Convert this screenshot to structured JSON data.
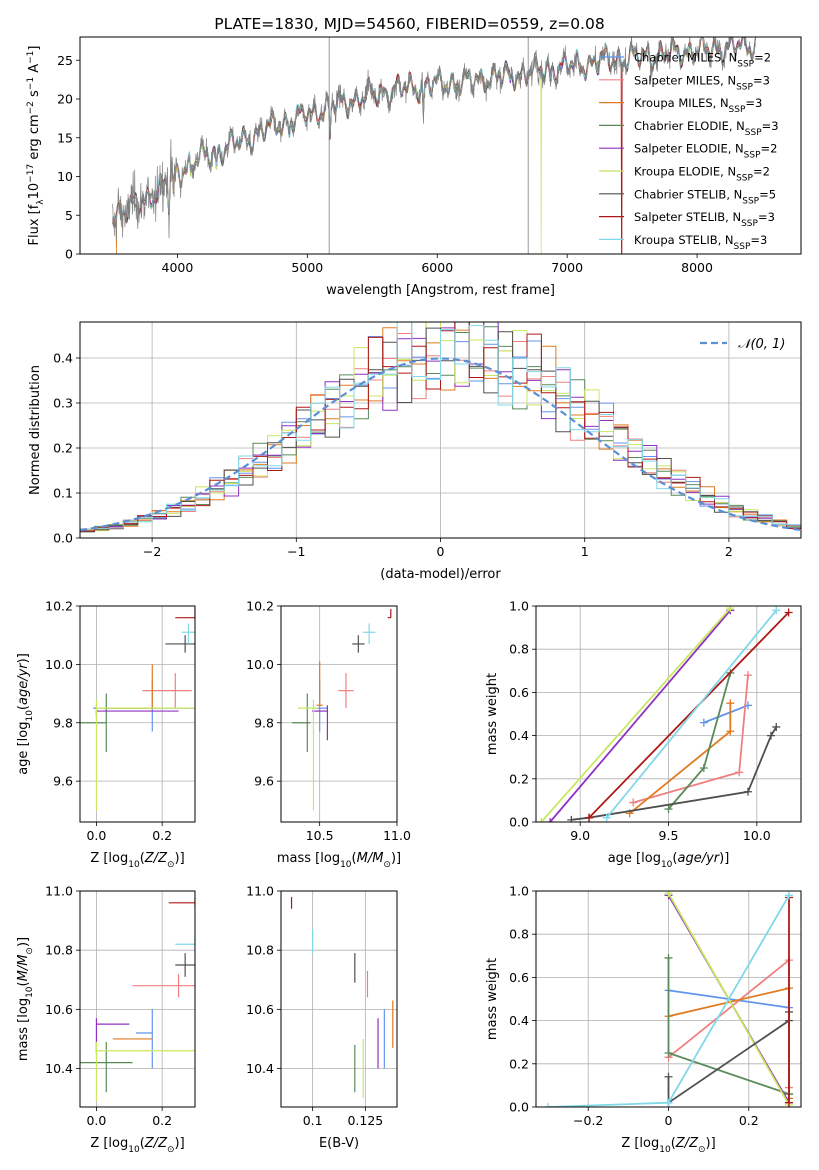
{
  "figure": {
    "suptitle": "PLATE=1830, MJD=54560, FIBERID=0559, z=0.08"
  },
  "series_styles": [
    {
      "name": "Chabrier MILES, N_SSP=2",
      "label_main": "Chabrier MILES, N",
      "label_sub": "SSP",
      "label_tail": "=2",
      "color": "#6495ed"
    },
    {
      "name": "Salpeter MILES, N_SSP=3",
      "label_main": "Salpeter MILES, N",
      "label_sub": "SSP",
      "label_tail": "=3",
      "color": "#f08080"
    },
    {
      "name": "Kroupa MILES, N_SSP=3",
      "label_main": "Kroupa MILES, N",
      "label_sub": "SSP",
      "label_tail": "=3",
      "color": "#e07b20"
    },
    {
      "name": "Chabrier ELODIE, N_SSP=3",
      "label_main": "Chabrier ELODIE, N",
      "label_sub": "SSP",
      "label_tail": "=3",
      "color": "#5a8a5a"
    },
    {
      "name": "Salpeter ELODIE, N_SSP=2",
      "label_main": "Salpeter ELODIE, N",
      "label_sub": "SSP",
      "label_tail": "=2",
      "color": "#9030c0"
    },
    {
      "name": "Kroupa ELODIE, N_SSP=2",
      "label_main": "Kroupa ELODIE, N",
      "label_sub": "SSP",
      "label_tail": "=2",
      "color": "#c8e860"
    },
    {
      "name": "Chabrier STELIB, N_SSP=5",
      "label_main": "Chabrier STELIB, N",
      "label_sub": "SSP",
      "label_tail": "=5",
      "color": "#505050"
    },
    {
      "name": "Salpeter STELIB, N_SSP=3",
      "label_main": "Salpeter STELIB, N",
      "label_sub": "SSP",
      "label_tail": "=3",
      "color": "#b01818"
    },
    {
      "name": "Kroupa STELIB, N_SSP=3",
      "label_main": "Kroupa STELIB, N",
      "label_sub": "SSP",
      "label_tail": "=3",
      "color": "#80d8e8"
    }
  ],
  "chart_data": [
    {
      "id": "spectrum",
      "type": "line",
      "xlabel": "wavelength [Angstrom, rest frame]",
      "ylabel": "Flux [f_λ 10^-17 erg cm^-2 s^-1 A^-1]",
      "ylabel_parts": {
        "a": "Flux [f",
        "a_sub": "λ",
        "b": "10",
        "b_sup": "−17",
        "c": " erg cm",
        "c_sup": "−2",
        "d": " s",
        "d_sup": "−1",
        "e": " A",
        "e_sup": "−1",
        "f": "]"
      },
      "xlim": [
        3250,
        8800
      ],
      "ylim": [
        0,
        28
      ],
      "xticks": [
        4000,
        5000,
        6000,
        7000,
        8000
      ],
      "yticks": [
        0,
        5,
        10,
        15,
        20,
        25
      ],
      "grid": false,
      "legend": "top-right",
      "data_color": "#808080",
      "continuum": {
        "x": [
          3500,
          3650,
          3800,
          3950,
          4100,
          4300,
          4500,
          4700,
          4900,
          5100,
          5300,
          5500,
          5700,
          5900,
          6100,
          6300,
          6500,
          6700,
          6900,
          7100,
          7300,
          7500,
          7700,
          7900,
          8100,
          8300,
          8450
        ],
        "y": [
          5.0,
          6.0,
          7.5,
          9.8,
          11.8,
          13.2,
          14.6,
          16.2,
          17.4,
          18.6,
          19.6,
          20.6,
          21.2,
          21.8,
          22.0,
          22.4,
          23.0,
          23.4,
          24.0,
          24.4,
          24.9,
          25.3,
          25.7,
          26.1,
          26.4,
          26.8,
          27.0
        ]
      },
      "absorption_features": [
        {
          "x": 3934,
          "depth": 3.5
        },
        {
          "x": 3969,
          "depth": 3.0
        },
        {
          "x": 4102,
          "depth": 2.0
        },
        {
          "x": 4300,
          "depth": 1.8
        },
        {
          "x": 4861,
          "depth": 1.5
        },
        {
          "x": 5175,
          "depth": 4.0
        },
        {
          "x": 5893,
          "depth": 4.5
        },
        {
          "x": 6563,
          "depth": 1.5
        },
        {
          "x": 6870,
          "depth": 1.2
        }
      ],
      "data_spikes": [
        {
          "x": 5168,
          "to": 28
        },
        {
          "x": 6700,
          "to": 28
        }
      ],
      "model_dropouts": [
        {
          "series": 5,
          "x": 6800
        },
        {
          "series": 7,
          "x": 7420
        },
        {
          "series": 2,
          "x": 3530
        }
      ]
    },
    {
      "id": "residual-histogram",
      "type": "step",
      "xlabel": "(data-model)/error",
      "ylabel": "Normed distribution",
      "xlim": [
        -2.5,
        2.5
      ],
      "ylim": [
        0,
        0.48
      ],
      "xticks": [
        -2,
        -1,
        0,
        1,
        2
      ],
      "yticks": [
        0.0,
        0.1,
        0.2,
        0.3,
        0.4
      ],
      "grid": true,
      "legend": "top-right",
      "reference": {
        "name": "N(0,1)",
        "label": "𝒩(0, 1)",
        "mean": 0,
        "sigma": 1,
        "color": "#5b8fd6"
      },
      "bin_edges_start": -2.5,
      "bin_width": 0.1
    },
    {
      "id": "age-vs-Z",
      "type": "errorbar",
      "xlabel": "Z [log10(Z/Z⊙)]",
      "ylabel": "age [log10(age/yr)]",
      "xlim": [
        -0.05,
        0.3
      ],
      "ylim": [
        9.46,
        10.2
      ],
      "xticks": [
        0.0,
        0.2
      ],
      "yticks": [
        9.6,
        9.8,
        10.0,
        10.2
      ],
      "grid": true,
      "points": [
        {
          "series": 0,
          "x": 0.17,
          "xerr": [
            0.18,
            0.18
          ],
          "y": 9.85,
          "yerr": [
            0.08,
            0.1
          ]
        },
        {
          "series": 1,
          "x": 0.24,
          "xerr": [
            0.1,
            0.05
          ],
          "y": 9.91,
          "yerr": [
            0.06,
            0.06
          ]
        },
        {
          "series": 2,
          "x": 0.17,
          "xerr": [
            0.15,
            0.02
          ],
          "y": 9.85,
          "yerr": [
            0.0,
            0.15
          ]
        },
        {
          "series": 3,
          "x": 0.03,
          "xerr": [
            0.2,
            0.0
          ],
          "y": 9.8,
          "yerr": [
            0.1,
            0.1
          ]
        },
        {
          "series": 4,
          "x": 0.0,
          "xerr": [
            0.0,
            0.25
          ],
          "y": 9.84,
          "yerr": [
            0.02,
            0.02
          ]
        },
        {
          "series": 5,
          "x": 0.0,
          "xerr": [
            0.0,
            0.33
          ],
          "y": 9.85,
          "yerr": [
            0.35,
            0.03
          ]
        },
        {
          "series": 6,
          "x": 0.27,
          "xerr": [
            0.06,
            0.07
          ],
          "y": 10.07,
          "yerr": [
            0.03,
            0.03
          ]
        },
        {
          "series": 7,
          "x": 0.3,
          "xerr": [
            0.06,
            0.0
          ],
          "y": 10.16,
          "yerr": [
            0.0,
            0.03
          ]
        },
        {
          "series": 8,
          "x": 0.28,
          "xerr": [
            0.02,
            0.04
          ],
          "y": 10.11,
          "yerr": [
            0.04,
            0.03
          ]
        }
      ]
    },
    {
      "id": "age-vs-mass",
      "type": "errorbar",
      "xlabel": "mass [log10(M/M⊙)]",
      "ylabel": "",
      "xlim": [
        10.25,
        11.0
      ],
      "ylim": [
        9.46,
        10.2
      ],
      "xticks": [
        10.5,
        11.0
      ],
      "yticks": [
        9.6,
        9.8,
        10.0,
        10.2
      ],
      "grid": true,
      "points": [
        {
          "series": 0,
          "x": 10.5,
          "xerr": [
            0.05,
            0.05
          ],
          "y": 9.85,
          "yerr": [
            0.08,
            0.1
          ]
        },
        {
          "series": 1,
          "x": 10.67,
          "xerr": [
            0.05,
            0.05
          ],
          "y": 9.91,
          "yerr": [
            0.06,
            0.06
          ]
        },
        {
          "series": 2,
          "x": 10.5,
          "xerr": [
            0.02,
            0.02
          ],
          "y": 9.86,
          "yerr": [
            0.0,
            0.15
          ]
        },
        {
          "series": 3,
          "x": 10.42,
          "xerr": [
            0.1,
            0.02
          ],
          "y": 9.8,
          "yerr": [
            0.1,
            0.1
          ]
        },
        {
          "series": 4,
          "x": 10.55,
          "xerr": [
            0.1,
            0.0
          ],
          "y": 9.84,
          "yerr": [
            0.1,
            0.02
          ]
        },
        {
          "series": 5,
          "x": 10.46,
          "xerr": [
            0.1,
            0.03
          ],
          "y": 9.85,
          "yerr": [
            0.35,
            0.03
          ]
        },
        {
          "series": 6,
          "x": 10.75,
          "xerr": [
            0.04,
            0.04
          ],
          "y": 10.07,
          "yerr": [
            0.03,
            0.03
          ]
        },
        {
          "series": 7,
          "x": 10.96,
          "xerr": [
            0.02,
            0.0
          ],
          "y": 10.16,
          "yerr": [
            0.0,
            0.03
          ]
        },
        {
          "series": 8,
          "x": 10.82,
          "xerr": [
            0.04,
            0.04
          ],
          "y": 10.11,
          "yerr": [
            0.04,
            0.03
          ]
        }
      ]
    },
    {
      "id": "massweight-vs-age",
      "type": "line",
      "xlabel": "age [log10(age/yr)]",
      "ylabel": "mass weight",
      "xlim": [
        8.75,
        10.25
      ],
      "ylim": [
        0.0,
        1.0
      ],
      "xticks": [
        9.0,
        9.5,
        10.0
      ],
      "yticks": [
        0.0,
        0.2,
        0.4,
        0.6,
        0.8,
        1.0
      ],
      "grid": true,
      "series": [
        {
          "series": 0,
          "x": [
            9.7,
            9.95
          ],
          "y": [
            0.46,
            0.54
          ]
        },
        {
          "series": 1,
          "x": [
            9.3,
            9.9,
            9.95
          ],
          "y": [
            0.09,
            0.23,
            0.68
          ]
        },
        {
          "series": 2,
          "x": [
            9.28,
            9.85,
            9.85
          ],
          "y": [
            0.04,
            0.42,
            0.55
          ]
        },
        {
          "series": 3,
          "x": [
            9.5,
            9.7,
            9.85
          ],
          "y": [
            0.06,
            0.25,
            0.69
          ]
        },
        {
          "series": 4,
          "x": [
            8.83,
            9.85
          ],
          "y": [
            0.0,
            0.98
          ]
        },
        {
          "series": 5,
          "x": [
            8.78,
            9.85
          ],
          "y": [
            0.0,
            0.99
          ]
        },
        {
          "series": 6,
          "x": [
            8.95,
            9.05,
            9.95,
            10.08,
            10.11
          ],
          "y": [
            0.01,
            0.02,
            0.14,
            0.4,
            0.44
          ]
        },
        {
          "series": 7,
          "x": [
            9.05,
            10.18
          ],
          "y": [
            0.02,
            0.97
          ]
        },
        {
          "series": 8,
          "x": [
            9.15,
            10.11
          ],
          "y": [
            0.02,
            0.98
          ]
        }
      ]
    },
    {
      "id": "mass-vs-Z",
      "type": "errorbar",
      "xlabel": "Z [log10(Z/Z⊙)]",
      "ylabel": "mass [log10(M/M⊙)]",
      "xlim": [
        -0.05,
        0.3
      ],
      "ylim": [
        10.27,
        11.0
      ],
      "xticks": [
        0.0,
        0.2
      ],
      "yticks": [
        10.4,
        10.6,
        10.8,
        11.0
      ],
      "grid": true,
      "points": [
        {
          "series": 0,
          "x": 0.17,
          "xerr": [
            0.05,
            0.0
          ],
          "y": 10.52,
          "yerr": [
            0.12,
            0.08
          ]
        },
        {
          "series": 1,
          "x": 0.25,
          "xerr": [
            0.14,
            0.05
          ],
          "y": 10.68,
          "yerr": [
            0.04,
            0.04
          ]
        },
        {
          "series": 2,
          "x": 0.17,
          "xerr": [
            0.12,
            0.0
          ],
          "y": 10.5,
          "yerr": [
            0.0,
            0.0
          ]
        },
        {
          "series": 3,
          "x": 0.03,
          "xerr": [
            0.08,
            0.08
          ],
          "y": 10.42,
          "yerr": [
            0.1,
            0.07
          ]
        },
        {
          "series": 4,
          "x": 0.0,
          "xerr": [
            0.0,
            0.1
          ],
          "y": 10.55,
          "yerr": [
            0.1,
            0.02
          ]
        },
        {
          "series": 5,
          "x": 0.0,
          "xerr": [
            0.0,
            0.33
          ],
          "y": 10.46,
          "yerr": [
            0.17,
            0.03
          ]
        },
        {
          "series": 6,
          "x": 0.27,
          "xerr": [
            0.03,
            0.04
          ],
          "y": 10.75,
          "yerr": [
            0.04,
            0.04
          ]
        },
        {
          "series": 7,
          "x": 0.3,
          "xerr": [
            0.08,
            0.0
          ],
          "y": 10.96,
          "yerr": [
            0.02,
            0.02
          ]
        },
        {
          "series": 8,
          "x": 0.3,
          "xerr": [
            0.06,
            0.0
          ],
          "y": 10.82,
          "yerr": [
            0.03,
            0.04
          ]
        }
      ]
    },
    {
      "id": "mass-vs-ebv",
      "type": "errorbar",
      "xlabel": "E(B-V)",
      "ylabel": "",
      "xlim": [
        0.085,
        0.14
      ],
      "ylim": [
        10.27,
        11.0
      ],
      "xticks": [
        0.1,
        0.125
      ],
      "yticks": [
        10.4,
        10.6,
        10.8,
        11.0
      ],
      "grid": true,
      "points": [
        {
          "series": 0,
          "x": 0.134,
          "xerr": [
            0.0,
            0.0
          ],
          "y": 10.52,
          "yerr": [
            0.12,
            0.08
          ]
        },
        {
          "series": 1,
          "x": 0.126,
          "xerr": [
            0.0,
            0.0
          ],
          "y": 10.68,
          "yerr": [
            0.04,
            0.05
          ]
        },
        {
          "series": 2,
          "x": 0.138,
          "xerr": [
            0.0,
            0.0
          ],
          "y": 10.55,
          "yerr": [
            0.08,
            0.08
          ]
        },
        {
          "series": 3,
          "x": 0.12,
          "xerr": [
            0.0,
            0.0
          ],
          "y": 10.4,
          "yerr": [
            0.08,
            0.08
          ]
        },
        {
          "series": 4,
          "x": 0.131,
          "xerr": [
            0.0,
            0.0
          ],
          "y": 10.5,
          "yerr": [
            0.1,
            0.07
          ]
        },
        {
          "series": 5,
          "x": 0.124,
          "xerr": [
            0.0,
            0.0
          ],
          "y": 10.4,
          "yerr": [
            0.1,
            0.1
          ]
        },
        {
          "series": 6,
          "x": 0.12,
          "xerr": [
            0.0,
            0.0
          ],
          "y": 10.74,
          "yerr": [
            0.05,
            0.05
          ]
        },
        {
          "series": 7,
          "x": 0.09,
          "xerr": [
            0.0,
            0.0
          ],
          "y": 10.96,
          "yerr": [
            0.02,
            0.02
          ]
        },
        {
          "series": 8,
          "x": 0.1,
          "xerr": [
            0.0,
            0.0
          ],
          "y": 10.83,
          "yerr": [
            0.04,
            0.04
          ]
        }
      ]
    },
    {
      "id": "massweight-vs-Z",
      "type": "line",
      "xlabel": "Z [log10(Z/Z⊙)]",
      "ylabel": "mass weight",
      "xlim": [
        -0.33,
        0.33
      ],
      "ylim": [
        0.0,
        1.0
      ],
      "xticks": [
        -0.2,
        0.0,
        0.2
      ],
      "yticks": [
        0.0,
        0.2,
        0.4,
        0.6,
        0.8,
        1.0
      ],
      "grid": true,
      "series": [
        {
          "series": 0,
          "x": [
            0.0,
            0.3
          ],
          "y": [
            0.54,
            0.46
          ]
        },
        {
          "series": 1,
          "x": [
            0.0,
            0.3,
            0.3
          ],
          "y": [
            0.23,
            0.68,
            0.09
          ]
        },
        {
          "series": 2,
          "x": [
            0.0,
            0.3,
            0.3
          ],
          "y": [
            0.42,
            0.55,
            0.04
          ]
        },
        {
          "series": 3,
          "x": [
            0.0,
            0.0,
            0.3,
            0.3
          ],
          "y": [
            0.69,
            0.25,
            0.06,
            0.06
          ]
        },
        {
          "series": 4,
          "x": [
            0.0,
            0.3
          ],
          "y": [
            0.98,
            0.02
          ]
        },
        {
          "series": 5,
          "x": [
            0.0,
            0.3
          ],
          "y": [
            0.99,
            0.01
          ]
        },
        {
          "series": 6,
          "x": [
            0.0,
            0.0,
            0.3,
            0.3
          ],
          "y": [
            0.14,
            0.02,
            0.4,
            0.44
          ]
        },
        {
          "series": 7,
          "x": [
            0.3,
            0.3
          ],
          "y": [
            0.02,
            0.97
          ]
        },
        {
          "series": 8,
          "x": [
            -0.3,
            0.0,
            0.3
          ],
          "y": [
            0.0,
            0.02,
            0.98
          ]
        }
      ]
    }
  ]
}
